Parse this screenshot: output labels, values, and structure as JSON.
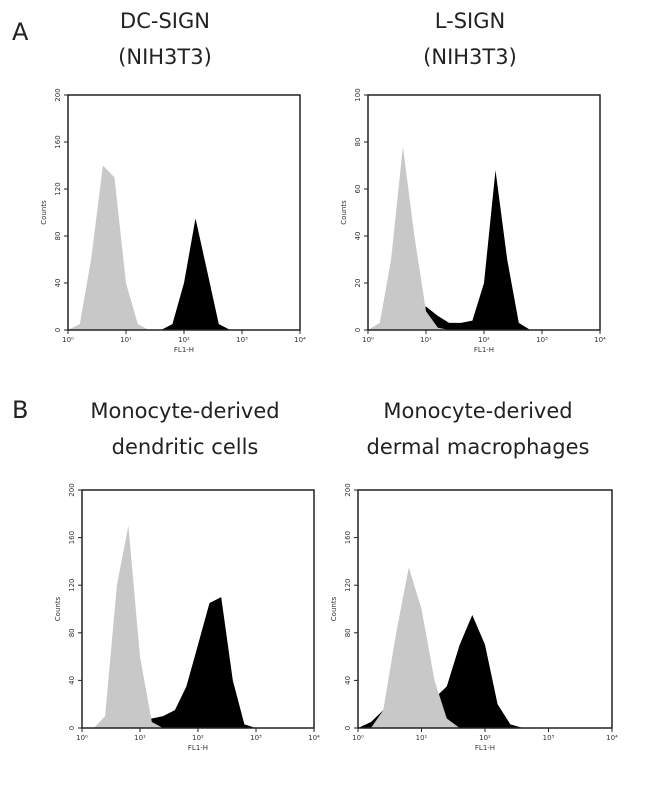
{
  "panel_labels": [
    "A",
    "B"
  ],
  "chart_data": [
    {
      "type": "histogram",
      "title": "DC-SIGN",
      "subtitle": "(NIH3T3)",
      "xlabel": "FL1-H",
      "ylabel": "Counts",
      "log_x": true,
      "xlim": [
        1,
        10000
      ],
      "xticks": [
        {
          "value": 1,
          "label": "10⁰"
        },
        {
          "value": 10,
          "label": "10¹"
        },
        {
          "value": 100,
          "label": "10²"
        },
        {
          "value": 1000,
          "label": "10³"
        },
        {
          "value": 10000,
          "label": "10⁴"
        }
      ],
      "ylim": [
        0,
        200
      ],
      "yticks": [
        0,
        40,
        80,
        120,
        160,
        200
      ],
      "x": [
        1,
        1.6,
        2.5,
        4,
        6.3,
        10,
        16,
        25,
        40,
        63,
        100,
        158,
        251,
        398,
        631,
        1000,
        1585,
        2512,
        3981,
        6310,
        10000
      ],
      "series": [
        {
          "color": "#000000",
          "values": [
            0,
            0,
            0,
            0,
            0,
            0,
            0,
            0,
            0,
            5,
            40,
            95,
            50,
            5,
            0,
            0,
            0,
            0,
            0,
            0,
            0
          ]
        },
        {
          "color": "#c8c8c8",
          "values": [
            0,
            5,
            60,
            140,
            130,
            40,
            5,
            0,
            0,
            0,
            0,
            0,
            0,
            0,
            0,
            0,
            0,
            0,
            0,
            0,
            0
          ]
        }
      ]
    },
    {
      "type": "histogram",
      "title": "L-SIGN",
      "subtitle": "(NIH3T3)",
      "xlabel": "FL1-H",
      "ylabel": "Counts",
      "log_x": true,
      "xlim": [
        1,
        10000
      ],
      "xticks": [
        {
          "value": 1,
          "label": "10⁰"
        },
        {
          "value": 10,
          "label": "10¹"
        },
        {
          "value": 100,
          "label": "10²"
        },
        {
          "value": 1000,
          "label": "10³"
        },
        {
          "value": 10000,
          "label": "10⁴"
        }
      ],
      "ylim": [
        0,
        100
      ],
      "yticks": [
        0,
        20,
        40,
        60,
        80,
        100
      ],
      "x": [
        1,
        1.6,
        2.5,
        4,
        6.3,
        10,
        16,
        25,
        40,
        63,
        100,
        158,
        251,
        398,
        631,
        1000,
        1585,
        2512,
        3981,
        6310,
        10000
      ],
      "series": [
        {
          "color": "#000000",
          "values": [
            0,
            0,
            0,
            2,
            6,
            10,
            6,
            3,
            3,
            4,
            20,
            68,
            30,
            3,
            0,
            0,
            0,
            0,
            0,
            0,
            0
          ]
        },
        {
          "color": "#c8c8c8",
          "values": [
            0,
            3,
            30,
            78,
            40,
            8,
            1,
            0,
            0,
            0,
            0,
            0,
            0,
            0,
            0,
            0,
            0,
            0,
            0,
            0,
            0
          ]
        }
      ]
    },
    {
      "type": "histogram",
      "title": "Monocyte-derived",
      "subtitle": "dendritic cells",
      "xlabel": "FL1-H",
      "ylabel": "Counts",
      "log_x": true,
      "xlim": [
        1,
        10000
      ],
      "xticks": [
        {
          "value": 1,
          "label": "10⁰"
        },
        {
          "value": 10,
          "label": "10¹"
        },
        {
          "value": 100,
          "label": "10²"
        },
        {
          "value": 1000,
          "label": "10³"
        },
        {
          "value": 10000,
          "label": "10⁴"
        }
      ],
      "ylim": [
        0,
        200
      ],
      "yticks": [
        0,
        40,
        80,
        120,
        160,
        200
      ],
      "x": [
        1,
        1.6,
        2.5,
        4,
        6.3,
        10,
        16,
        25,
        40,
        63,
        100,
        158,
        251,
        398,
        631,
        1000,
        1585,
        2512,
        3981,
        6310,
        10000
      ],
      "series": [
        {
          "color": "#000000",
          "values": [
            0,
            0,
            2,
            5,
            7,
            8,
            8,
            10,
            15,
            35,
            70,
            105,
            110,
            40,
            3,
            0,
            0,
            0,
            0,
            0,
            0
          ]
        },
        {
          "color": "#c8c8c8",
          "values": [
            0,
            0,
            10,
            120,
            170,
            60,
            5,
            0,
            0,
            0,
            0,
            0,
            0,
            0,
            0,
            0,
            0,
            0,
            0,
            0,
            0
          ]
        }
      ]
    },
    {
      "type": "histogram",
      "title": "Monocyte-derived",
      "subtitle": "dermal macrophages",
      "xlabel": "FL1-H",
      "ylabel": "Counts",
      "log_x": true,
      "xlim": [
        1,
        10000
      ],
      "xticks": [
        {
          "value": 1,
          "label": "10⁰"
        },
        {
          "value": 10,
          "label": "10¹"
        },
        {
          "value": 100,
          "label": "10²"
        },
        {
          "value": 1000,
          "label": "10³"
        },
        {
          "value": 10000,
          "label": "10⁴"
        }
      ],
      "ylim": [
        0,
        200
      ],
      "yticks": [
        0,
        40,
        80,
        120,
        160,
        200
      ],
      "x": [
        1,
        1.6,
        2.5,
        4,
        6.3,
        10,
        16,
        25,
        40,
        63,
        100,
        158,
        251,
        398,
        631,
        1000,
        1585,
        2512,
        3981,
        6310,
        10000
      ],
      "series": [
        {
          "color": "#000000",
          "values": [
            0,
            5,
            15,
            25,
            30,
            28,
            25,
            35,
            70,
            95,
            70,
            20,
            3,
            0,
            0,
            0,
            0,
            0,
            0,
            0,
            0
          ]
        },
        {
          "color": "#c8c8c8",
          "values": [
            0,
            0,
            15,
            80,
            135,
            100,
            40,
            8,
            0,
            0,
            0,
            0,
            0,
            0,
            0,
            0,
            0,
            0,
            0,
            0,
            0
          ]
        }
      ]
    }
  ]
}
